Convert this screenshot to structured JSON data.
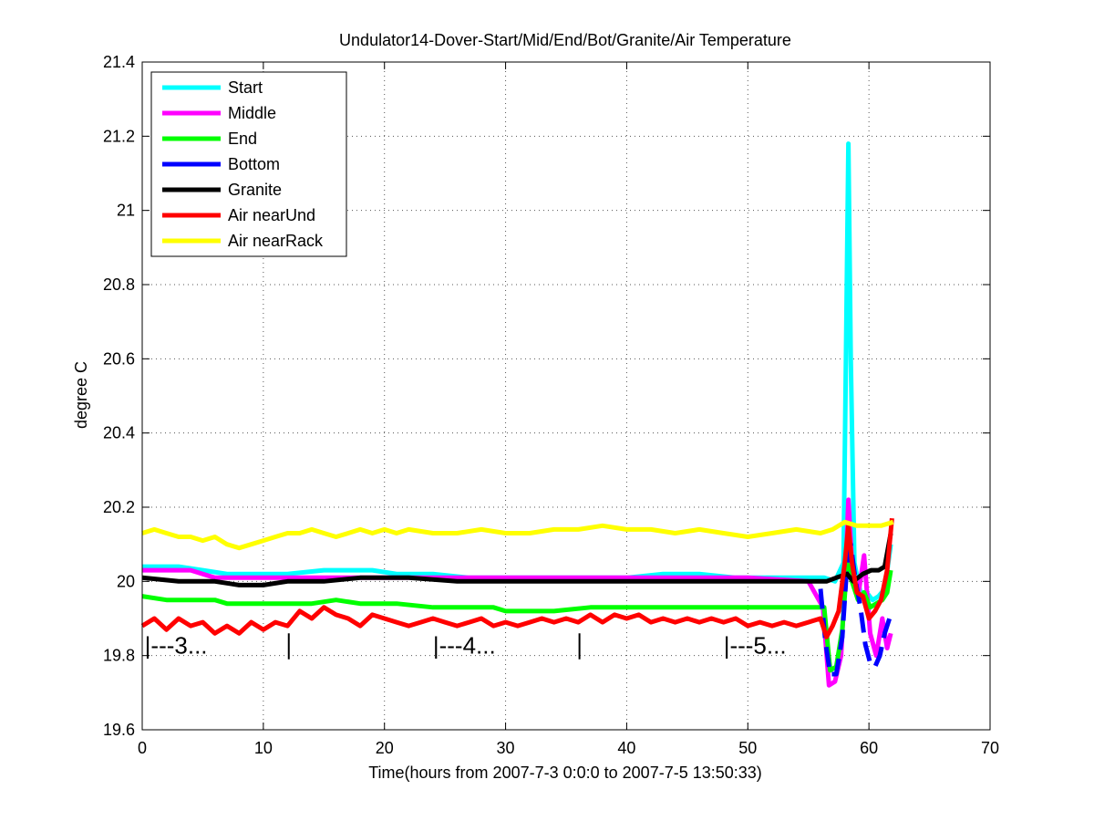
{
  "chart_data": {
    "type": "line",
    "title": "Undulator14-Dover-Start/Mid/End/Bot/Granite/Air Temperature",
    "xlabel": "Time(hours from 2007-7-3 0:0:0 to 2007-7-5 13:50:33)",
    "ylabel": "degree C",
    "xlim": [
      0,
      70
    ],
    "ylim": [
      19.6,
      21.4
    ],
    "xticks": [
      0,
      10,
      20,
      30,
      40,
      50,
      60,
      70
    ],
    "yticks": [
      19.6,
      19.8,
      20,
      20.2,
      20.4,
      20.6,
      20.8,
      21,
      21.2,
      21.4
    ],
    "xtick_labels": [
      "0",
      "10",
      "20",
      "30",
      "40",
      "50",
      "60",
      "70"
    ],
    "ytick_labels": [
      "19.6",
      "19.8",
      "20",
      "20.2",
      "20.4",
      "20.6",
      "20.8",
      "21",
      "21.2",
      "21.4"
    ],
    "grid": true,
    "legend_position": "top-left",
    "series": [
      {
        "name": "Start",
        "color": "#00ffff",
        "dash": "solid",
        "points": [
          [
            0,
            20.04
          ],
          [
            1,
            20.04
          ],
          [
            3,
            20.04
          ],
          [
            5,
            20.03
          ],
          [
            7,
            20.02
          ],
          [
            9,
            20.02
          ],
          [
            12,
            20.02
          ],
          [
            15,
            20.03
          ],
          [
            17,
            20.03
          ],
          [
            19,
            20.03
          ],
          [
            21,
            20.02
          ],
          [
            24,
            20.02
          ],
          [
            27,
            20.01
          ],
          [
            30,
            20.01
          ],
          [
            33,
            20.01
          ],
          [
            36,
            20.01
          ],
          [
            40,
            20.01
          ],
          [
            43,
            20.02
          ],
          [
            46,
            20.02
          ],
          [
            49,
            20.01
          ],
          [
            52,
            20.01
          ],
          [
            55,
            20.01
          ],
          [
            56.3,
            20.01
          ],
          [
            57.2,
            20.0
          ],
          [
            57.9,
            20.05
          ],
          [
            58.1,
            20.6
          ],
          [
            58.3,
            21.18
          ],
          [
            58.5,
            20.6
          ],
          [
            58.8,
            20.05
          ],
          [
            59.3,
            19.97
          ],
          [
            59.8,
            19.97
          ],
          [
            60.3,
            19.95
          ],
          [
            60.8,
            19.96
          ],
          [
            61.3,
            19.98
          ],
          [
            61.8,
            20.1
          ]
        ]
      },
      {
        "name": "Middle",
        "color": "#ff00ff",
        "dash": "solid",
        "points": [
          [
            0,
            20.03
          ],
          [
            2,
            20.03
          ],
          [
            4,
            20.03
          ],
          [
            6,
            20.01
          ],
          [
            8,
            20.01
          ],
          [
            10,
            20.01
          ],
          [
            12,
            20.01
          ],
          [
            14,
            20.01
          ],
          [
            16,
            20.01
          ],
          [
            18,
            20.01
          ],
          [
            20,
            20.01
          ],
          [
            22,
            20.01
          ],
          [
            24,
            20.01
          ],
          [
            26,
            20.01
          ],
          [
            30,
            20.01
          ],
          [
            35,
            20.01
          ],
          [
            40,
            20.01
          ],
          [
            45,
            20.01
          ],
          [
            50,
            20.01
          ],
          [
            55,
            20.0
          ],
          [
            56.2,
            19.93
          ],
          [
            56.7,
            19.72
          ],
          [
            57.2,
            19.73
          ],
          [
            57.7,
            19.8
          ],
          [
            58.1,
            20.05
          ],
          [
            58.3,
            20.22
          ],
          [
            58.6,
            20.05
          ],
          [
            59.1,
            19.96
          ],
          [
            59.6,
            20.07
          ],
          [
            60.1,
            19.86
          ],
          [
            60.6,
            19.8
          ],
          [
            61.1,
            19.9
          ],
          [
            61.5,
            19.82
          ],
          [
            61.8,
            19.86
          ]
        ]
      },
      {
        "name": "End",
        "color": "#00ff00",
        "dash": "solid",
        "points": [
          [
            0,
            19.96
          ],
          [
            2,
            19.95
          ],
          [
            4,
            19.95
          ],
          [
            6,
            19.95
          ],
          [
            7,
            19.94
          ],
          [
            10,
            19.94
          ],
          [
            14,
            19.94
          ],
          [
            16,
            19.95
          ],
          [
            18,
            19.94
          ],
          [
            21,
            19.94
          ],
          [
            24,
            19.93
          ],
          [
            27,
            19.93
          ],
          [
            29,
            19.93
          ],
          [
            30,
            19.92
          ],
          [
            34,
            19.92
          ],
          [
            37,
            19.93
          ],
          [
            40,
            19.93
          ],
          [
            45,
            19.93
          ],
          [
            50,
            19.93
          ],
          [
            55,
            19.93
          ],
          [
            56.3,
            19.93
          ],
          [
            56.8,
            19.76
          ],
          [
            57.3,
            19.77
          ],
          [
            57.8,
            19.87
          ],
          [
            58.2,
            20.05
          ],
          [
            58.6,
            20.0
          ],
          [
            59.1,
            19.95
          ],
          [
            59.6,
            19.97
          ],
          [
            60.1,
            19.93
          ],
          [
            60.6,
            19.94
          ],
          [
            61.1,
            19.95
          ],
          [
            61.5,
            19.97
          ],
          [
            61.8,
            20.03
          ]
        ]
      },
      {
        "name": "Bottom",
        "color": "#0000ff",
        "dash": "dashed",
        "points": [
          [
            56.0,
            19.98
          ],
          [
            56.4,
            19.84
          ],
          [
            56.8,
            19.75
          ],
          [
            57.3,
            19.75
          ],
          [
            57.8,
            19.85
          ],
          [
            58.2,
            20.05
          ],
          [
            58.5,
            20.1
          ],
          [
            58.9,
            20.0
          ],
          [
            59.3,
            19.93
          ],
          [
            59.7,
            19.83
          ],
          [
            60.1,
            19.78
          ],
          [
            60.5,
            19.77
          ],
          [
            60.9,
            19.8
          ],
          [
            61.3,
            19.86
          ],
          [
            61.7,
            19.9
          ],
          [
            61.9,
            19.91
          ]
        ]
      },
      {
        "name": "Granite",
        "color": "#000000",
        "dash": "solid",
        "points": [
          [
            0,
            20.01
          ],
          [
            3,
            20.0
          ],
          [
            6,
            20.0
          ],
          [
            8,
            19.99
          ],
          [
            10,
            19.99
          ],
          [
            12,
            20.0
          ],
          [
            15,
            20.0
          ],
          [
            18,
            20.01
          ],
          [
            22,
            20.01
          ],
          [
            26,
            20.0
          ],
          [
            30,
            20.0
          ],
          [
            35,
            20.0
          ],
          [
            40,
            20.0
          ],
          [
            45,
            20.0
          ],
          [
            50,
            20.0
          ],
          [
            55,
            20.0
          ],
          [
            56.5,
            20.0
          ],
          [
            57.3,
            20.01
          ],
          [
            58.2,
            20.02
          ],
          [
            58.7,
            20.0
          ],
          [
            59.5,
            20.02
          ],
          [
            60.2,
            20.03
          ],
          [
            60.8,
            20.03
          ],
          [
            61.3,
            20.04
          ],
          [
            61.8,
            20.13
          ]
        ]
      },
      {
        "name": "Air nearUnd",
        "color": "#ff0000",
        "dash": "solid",
        "points": [
          [
            0,
            19.88
          ],
          [
            1,
            19.9
          ],
          [
            2,
            19.87
          ],
          [
            3,
            19.9
          ],
          [
            4,
            19.88
          ],
          [
            5,
            19.89
          ],
          [
            6,
            19.86
          ],
          [
            7,
            19.88
          ],
          [
            8,
            19.86
          ],
          [
            9,
            19.89
          ],
          [
            10,
            19.87
          ],
          [
            11,
            19.89
          ],
          [
            12,
            19.88
          ],
          [
            13,
            19.92
          ],
          [
            14,
            19.9
          ],
          [
            15,
            19.93
          ],
          [
            16,
            19.91
          ],
          [
            17,
            19.9
          ],
          [
            18,
            19.88
          ],
          [
            19,
            19.91
          ],
          [
            20,
            19.9
          ],
          [
            21,
            19.89
          ],
          [
            22,
            19.88
          ],
          [
            23,
            19.89
          ],
          [
            24,
            19.9
          ],
          [
            25,
            19.89
          ],
          [
            26,
            19.88
          ],
          [
            27,
            19.89
          ],
          [
            28,
            19.9
          ],
          [
            29,
            19.88
          ],
          [
            30,
            19.89
          ],
          [
            31,
            19.88
          ],
          [
            32,
            19.89
          ],
          [
            33,
            19.9
          ],
          [
            34,
            19.89
          ],
          [
            35,
            19.9
          ],
          [
            36,
            19.89
          ],
          [
            37,
            19.91
          ],
          [
            38,
            19.89
          ],
          [
            39,
            19.91
          ],
          [
            40,
            19.9
          ],
          [
            41,
            19.91
          ],
          [
            42,
            19.89
          ],
          [
            43,
            19.9
          ],
          [
            44,
            19.89
          ],
          [
            45,
            19.9
          ],
          [
            46,
            19.89
          ],
          [
            47,
            19.9
          ],
          [
            48,
            19.89
          ],
          [
            49,
            19.9
          ],
          [
            50,
            19.88
          ],
          [
            51,
            19.89
          ],
          [
            52,
            19.88
          ],
          [
            53,
            19.89
          ],
          [
            54,
            19.88
          ],
          [
            55,
            19.89
          ],
          [
            56,
            19.9
          ],
          [
            56.5,
            19.85
          ],
          [
            57,
            19.88
          ],
          [
            57.5,
            19.92
          ],
          [
            58,
            20.05
          ],
          [
            58.3,
            20.15
          ],
          [
            58.6,
            20.05
          ],
          [
            59,
            19.97
          ],
          [
            59.5,
            19.96
          ],
          [
            60,
            19.9
          ],
          [
            60.5,
            19.92
          ],
          [
            61,
            19.95
          ],
          [
            61.5,
            20.03
          ],
          [
            61.9,
            20.17
          ]
        ]
      },
      {
        "name": "Air nearRack",
        "color": "#ffff00",
        "dash": "solid",
        "points": [
          [
            0,
            20.13
          ],
          [
            1,
            20.14
          ],
          [
            2,
            20.13
          ],
          [
            3,
            20.12
          ],
          [
            4,
            20.12
          ],
          [
            5,
            20.11
          ],
          [
            6,
            20.12
          ],
          [
            7,
            20.1
          ],
          [
            8,
            20.09
          ],
          [
            9,
            20.1
          ],
          [
            10,
            20.11
          ],
          [
            11,
            20.12
          ],
          [
            12,
            20.13
          ],
          [
            13,
            20.13
          ],
          [
            14,
            20.14
          ],
          [
            15,
            20.13
          ],
          [
            16,
            20.12
          ],
          [
            17,
            20.13
          ],
          [
            18,
            20.14
          ],
          [
            19,
            20.13
          ],
          [
            20,
            20.14
          ],
          [
            21,
            20.13
          ],
          [
            22,
            20.14
          ],
          [
            24,
            20.13
          ],
          [
            26,
            20.13
          ],
          [
            28,
            20.14
          ],
          [
            30,
            20.13
          ],
          [
            32,
            20.13
          ],
          [
            34,
            20.14
          ],
          [
            36,
            20.14
          ],
          [
            38,
            20.15
          ],
          [
            40,
            20.14
          ],
          [
            42,
            20.14
          ],
          [
            44,
            20.13
          ],
          [
            46,
            20.14
          ],
          [
            48,
            20.13
          ],
          [
            50,
            20.12
          ],
          [
            52,
            20.13
          ],
          [
            54,
            20.14
          ],
          [
            56,
            20.13
          ],
          [
            57,
            20.14
          ],
          [
            58,
            20.16
          ],
          [
            59,
            20.15
          ],
          [
            60,
            20.15
          ],
          [
            61,
            20.15
          ],
          [
            62,
            20.16
          ]
        ]
      }
    ],
    "annotations": [
      {
        "text": "|---3...",
        "x": 0.2,
        "y": 19.83
      },
      {
        "text": "|---4...",
        "x": 24.0,
        "y": 19.83
      },
      {
        "text": "|---5...",
        "x": 48.0,
        "y": 19.83
      }
    ],
    "day_tick_markers": [
      12.1,
      36.1
    ]
  }
}
